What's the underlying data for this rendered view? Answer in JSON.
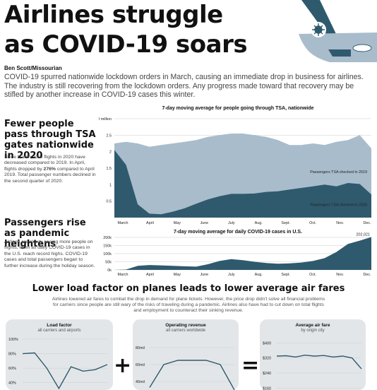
{
  "header": {
    "title_line1": "Airlines struggle",
    "title_line2": "as COVID-19 soars",
    "byline": "Ben Scott/Missourian",
    "intro": "COVID-19 spurred nationwide lockdown orders in March, causing an immediate drop in business for airlines. The industry is still recovering from the lockdown orders. Any progress made toward that recovery may be stifled by another increase in COVID-19 cases this winter."
  },
  "section_tsa": {
    "heading": "Fewer people pass through TSA gates nationwide in 2020",
    "text_before": "Since March, total flights in 2020 have decreased compared to 2019. In April, flights dropped by ",
    "text_bold": "276%",
    "text_after": " compared to April 2019. Total passenger numbers declined in the second quarter of 2020."
  },
  "section_covid": {
    "heading": "Passengers rise as pandemic heightens",
    "text": "Airlines are slowly seeing more people on flights, even as daily COVID-19 cases in the U.S. reach record highs. COVID-19 cases and total passengers began to further increase during the holiday season."
  },
  "section_fares": {
    "heading": "Lower load factor on planes leads to lower average air fares",
    "text": "Airlines lowered air fares to combat the drop in demand for plane tickets. However, the price drop didn't solve all financial problems for carriers since people are still wary of the risks of traveling during a pandemic. Airlines also have had to cut down on total flights and employment to counteract their sinking revenue.",
    "plus": "+",
    "equals": "="
  },
  "colors": {
    "light_area": "#a9bccb",
    "dark_area": "#2f5a6e",
    "ink": "#111111",
    "panel": "#e3e6e8"
  },
  "chart_data": [
    {
      "type": "area",
      "title": "7-day moving average for people going through TSA, nationwide",
      "x_ticks": [
        "March",
        "April",
        "May",
        "June",
        "July",
        "Aug.",
        "Sept.",
        "Oct.",
        "Nov.",
        "Dec."
      ],
      "y_ticks": [
        "3 million",
        "2.5",
        "2",
        "1.5",
        "1",
        "0.5"
      ],
      "ylim": [
        0,
        3
      ],
      "series": [
        {
          "name": "Passengers TSA checked in 2019",
          "values": [
            2.25,
            2.3,
            2.25,
            2.15,
            2.2,
            2.25,
            2.3,
            2.35,
            2.45,
            2.5,
            2.55,
            2.55,
            2.5,
            2.45,
            2.35,
            2.2,
            2.2,
            2.25,
            2.2,
            2.3,
            2.35,
            2.5,
            2.1
          ]
        },
        {
          "name": "Passengers TSA checked in 2020",
          "values": [
            2.05,
            1.6,
            0.4,
            0.12,
            0.1,
            0.18,
            0.28,
            0.42,
            0.55,
            0.65,
            0.72,
            0.72,
            0.73,
            0.78,
            0.8,
            0.85,
            0.9,
            0.95,
            1.0,
            0.95,
            1.05,
            1.02,
            0.7
          ]
        }
      ]
    },
    {
      "type": "area",
      "title": "7-day moving average for daily COVID-19 cases in U.S.",
      "x_ticks": [
        "March",
        "April",
        "May",
        "June",
        "July",
        "Aug.",
        "Sept.",
        "Oct.",
        "Nov.",
        "Dec."
      ],
      "y_ticks": [
        "200k",
        "150k",
        "100k",
        "50k",
        "0k"
      ],
      "ylim": [
        0,
        200000
      ],
      "annotation": "202,021",
      "values": [
        0,
        2000,
        25000,
        30000,
        28000,
        25000,
        22000,
        20000,
        35000,
        55000,
        66000,
        60000,
        50000,
        42000,
        38000,
        40000,
        45000,
        55000,
        72000,
        110000,
        160000,
        180000,
        202021
      ]
    },
    {
      "type": "line",
      "title": "Load factor",
      "subtitle": "all carriers and airports",
      "y_ticks": [
        "100%",
        "80%",
        "60%",
        "40%"
      ],
      "ylim": [
        30,
        100
      ],
      "values": [
        80,
        81,
        60,
        32,
        62,
        56,
        58,
        65
      ]
    },
    {
      "type": "line",
      "title": "Operating revenue",
      "subtitle": "all carriers worldwide",
      "y_ticks": [
        "80mil",
        "60mil",
        "40mil"
      ],
      "ylim": [
        30,
        90
      ],
      "values": [
        33,
        60,
        65,
        65,
        65,
        60,
        30
      ]
    },
    {
      "type": "line",
      "title": "Average air fare",
      "subtitle": "by origin city",
      "y_ticks": [
        "$400",
        "$320",
        "$240",
        "$160"
      ],
      "ylim": [
        150,
        420
      ],
      "values": [
        330,
        332,
        325,
        335,
        330,
        333,
        325,
        330,
        320,
        262
      ]
    }
  ]
}
